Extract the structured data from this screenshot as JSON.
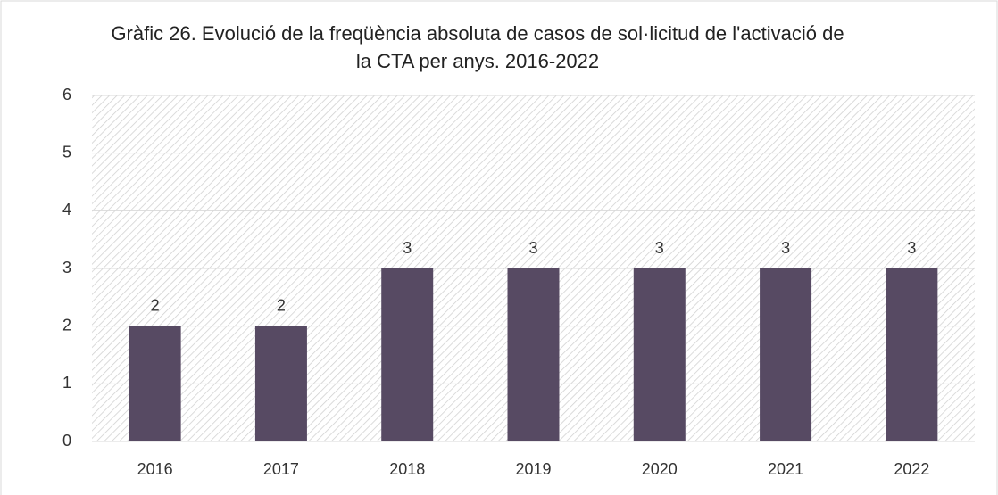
{
  "chart_data": {
    "type": "bar",
    "title": "Gràfic 26. Evolució de la freqüència absoluta de casos de sol·licitud de l'activació de la CTA per anys. 2016-2022",
    "categories": [
      "2016",
      "2017",
      "2018",
      "2019",
      "2020",
      "2021",
      "2022"
    ],
    "values": [
      2,
      2,
      3,
      3,
      3,
      3,
      3
    ],
    "color": "#574a63",
    "ylim": [
      0,
      6
    ],
    "yticks": [
      0,
      1,
      2,
      3,
      4,
      5,
      6
    ],
    "grid": true
  }
}
